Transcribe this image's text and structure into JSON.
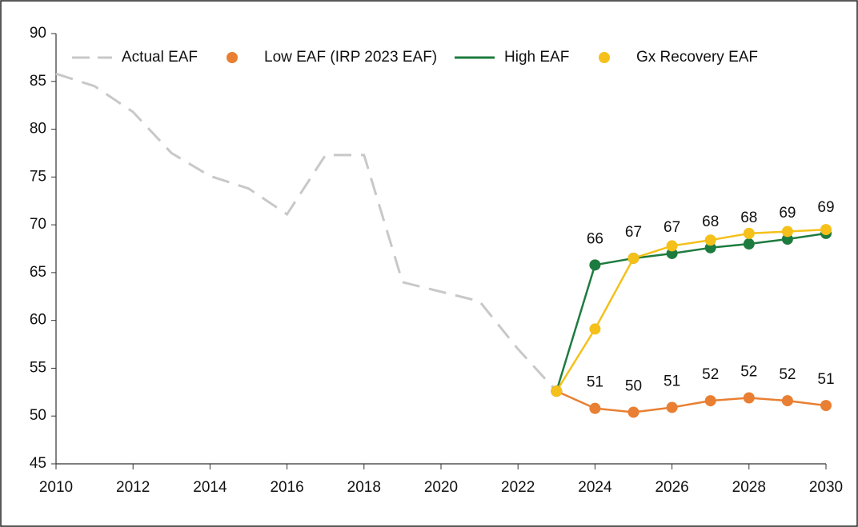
{
  "chart_data": {
    "type": "line",
    "x": [
      2010,
      2011,
      2012,
      2013,
      2014,
      2015,
      2016,
      2017,
      2018,
      2019,
      2020,
      2021,
      2022,
      2023,
      2024,
      2025,
      2026,
      2027,
      2028,
      2029,
      2030
    ],
    "series": [
      {
        "name": "Actual EAF",
        "color": "#c8c8c8",
        "dashed": true,
        "markers": false,
        "values": [
          85.8,
          84.5,
          81.8,
          77.5,
          75.1,
          73.8,
          71.1,
          77.3,
          77.3,
          64.0,
          63.0,
          62.0,
          57.0,
          52.6,
          null,
          null,
          null,
          null,
          null,
          null,
          null
        ]
      },
      {
        "name": "Low EAF (IRP 2023 EAF)",
        "color": "#e97f32",
        "dashed": false,
        "markers": true,
        "values": [
          null,
          null,
          null,
          null,
          null,
          null,
          null,
          null,
          null,
          null,
          null,
          null,
          null,
          52.6,
          50.8,
          50.4,
          50.9,
          51.6,
          51.9,
          51.6,
          51.1
        ],
        "value_labels": [
          null,
          null,
          null,
          null,
          null,
          null,
          null,
          null,
          null,
          null,
          null,
          null,
          null,
          null,
          "51",
          "50",
          "51",
          "52",
          "52",
          "52",
          "51"
        ]
      },
      {
        "name": "High EAF",
        "color": "#1e7b3f",
        "dashed": false,
        "markers": true,
        "values": [
          null,
          null,
          null,
          null,
          null,
          null,
          null,
          null,
          null,
          null,
          null,
          null,
          null,
          52.6,
          65.8,
          66.5,
          67.0,
          67.6,
          68.0,
          68.5,
          69.1
        ],
        "value_labels": [
          null,
          null,
          null,
          null,
          null,
          null,
          null,
          null,
          null,
          null,
          null,
          null,
          null,
          null,
          "66",
          "67",
          "67",
          "68",
          "68",
          "69",
          "69"
        ]
      },
      {
        "name": "Gx Recovery EAF",
        "color": "#f5c01a",
        "dashed": false,
        "markers": true,
        "values": [
          null,
          null,
          null,
          null,
          null,
          null,
          null,
          null,
          null,
          null,
          null,
          null,
          null,
          52.6,
          59.1,
          66.5,
          67.8,
          68.4,
          69.1,
          69.3,
          69.5
        ]
      }
    ],
    "xlim": [
      2010,
      2030
    ],
    "xticks": [
      2010,
      2012,
      2014,
      2016,
      2018,
      2020,
      2022,
      2024,
      2026,
      2028,
      2030
    ],
    "ylim": [
      45,
      90
    ],
    "yticks": [
      45,
      50,
      55,
      60,
      65,
      70,
      75,
      80,
      85,
      90
    ],
    "grid": false,
    "legend": "top"
  }
}
